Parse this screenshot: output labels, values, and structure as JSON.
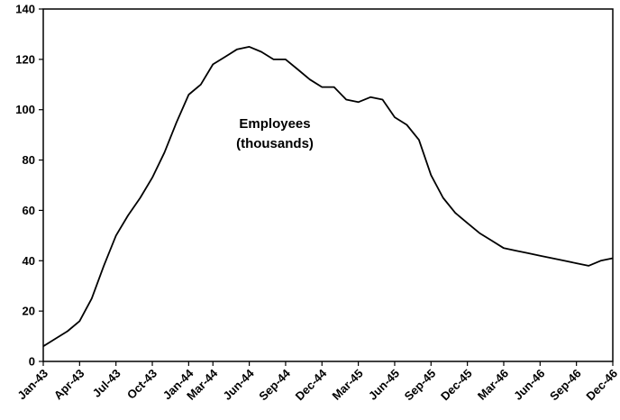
{
  "chart_data": {
    "type": "line",
    "title": "",
    "xlabel": "",
    "ylabel": "",
    "ylim": [
      0,
      140
    ],
    "yticks": [
      0,
      20,
      40,
      60,
      80,
      100,
      120,
      140
    ],
    "xtick_labels": [
      "Jan-43",
      "Apr-43",
      "Jul-43",
      "Oct-43",
      "Jan-44",
      "Mar-44",
      "Jun-44",
      "Sep-44",
      "Dec-44",
      "Mar-45",
      "Jun-45",
      "Sep-45",
      "Dec-45",
      "Mar-46",
      "Jun-46",
      "Sep-46",
      "Dec-46"
    ],
    "annotation": [
      "Employees",
      "(thousands)"
    ],
    "grid": false,
    "line_color": "#000000",
    "series": [
      {
        "x": [
          "Jan-43",
          "Feb-43",
          "Mar-43",
          "Apr-43",
          "May-43",
          "Jun-43",
          "Jul-43",
          "Aug-43",
          "Sep-43",
          "Oct-43",
          "Nov-43",
          "Dec-43",
          "Jan-44",
          "Feb-44",
          "Mar-44",
          "Apr-44",
          "May-44",
          "Jun-44",
          "Jul-44",
          "Aug-44",
          "Sep-44",
          "Oct-44",
          "Nov-44",
          "Dec-44",
          "Jan-45",
          "Feb-45",
          "Mar-45",
          "Apr-45",
          "May-45",
          "Jun-45",
          "Jul-45",
          "Aug-45",
          "Sep-45",
          "Oct-45",
          "Nov-45",
          "Dec-45",
          "Jan-46",
          "Feb-46",
          "Mar-46",
          "Apr-46",
          "May-46",
          "Jun-46",
          "Jul-46",
          "Aug-46",
          "Sep-46",
          "Oct-46",
          "Nov-46",
          "Dec-46"
        ],
        "values": [
          6,
          9,
          12,
          16,
          25,
          38,
          50,
          58,
          65,
          73,
          83,
          95,
          106,
          110,
          118,
          121,
          124,
          125,
          123,
          120,
          120,
          116,
          112,
          109,
          109,
          104,
          103,
          105,
          104,
          97,
          94,
          88,
          74,
          65,
          59,
          55,
          51,
          48,
          45,
          44,
          43,
          42,
          41,
          40,
          39,
          38,
          40,
          41
        ]
      }
    ]
  }
}
